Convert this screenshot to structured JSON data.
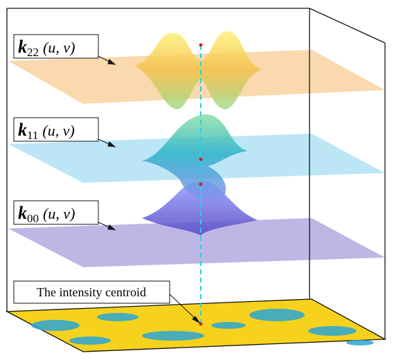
{
  "labels": [
    {
      "symbol": "k",
      "subscript": "22",
      "args": "(u, v)"
    },
    {
      "symbol": "k",
      "subscript": "11",
      "args": "(u, v)"
    },
    {
      "symbol": "k",
      "subscript": "00",
      "args": "(u, v)"
    }
  ],
  "centroid_label": "The intensity centroid"
}
